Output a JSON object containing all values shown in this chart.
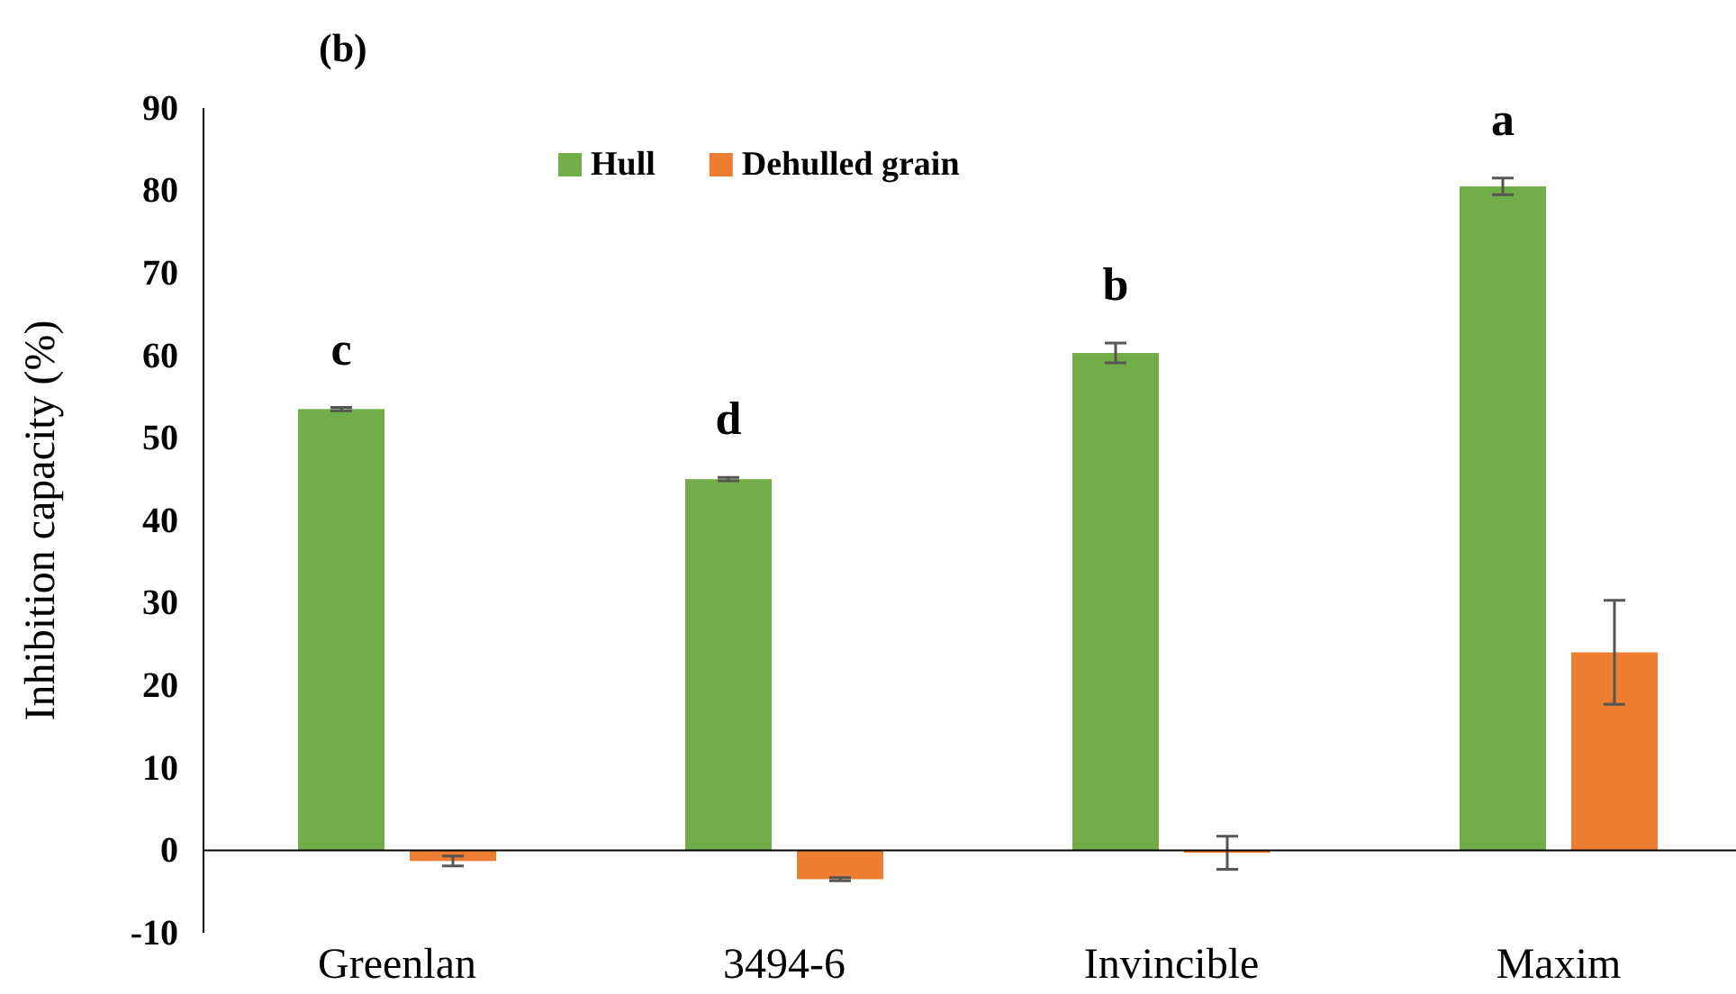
{
  "chart_data": {
    "type": "bar",
    "title": "(b)",
    "ylabel": "Inhibition capacity (%)",
    "categories": [
      "Greenlan",
      "3494-6",
      "Invincible",
      "Maxim"
    ],
    "series": [
      {
        "name": "Hull",
        "color": "#70ad47",
        "values": [
          53.5,
          45,
          60.3,
          80.5
        ],
        "errors": [
          0.2,
          0.2,
          1.2,
          1
        ]
      },
      {
        "name": "Dehulled grain",
        "color": "#ed7d31",
        "values": [
          -1.3,
          -3.5,
          -0.3,
          24
        ],
        "errors": [
          0.6,
          0.2,
          2,
          6.3
        ]
      }
    ],
    "ylim": [
      -10,
      90
    ],
    "yticks": [
      -10,
      0,
      10,
      20,
      30,
      40,
      50,
      60,
      70,
      80,
      90
    ],
    "annotations": [
      "c",
      "d",
      "b",
      "a"
    ],
    "grid": false,
    "legend": "top"
  }
}
